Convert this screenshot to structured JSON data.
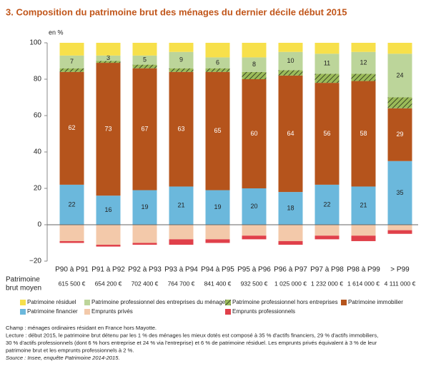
{
  "chart_data": {
    "type": "stacked-bar",
    "title": "3. Composition du patrimoine brut des ménages du dernier décile début 2015",
    "y_label": "en %",
    "categories": [
      "P90 à P91",
      "P91 à P92",
      "P92 à P93",
      "P93 à P94",
      "P94 à P95",
      "P95 à P96",
      "P96 à P97",
      "P97 à P98",
      "P98 à P99",
      "> P99"
    ],
    "series": [
      {
        "name": "Patrimoine financier",
        "color": "#6bb8dc",
        "show_labels": true,
        "values": [
          22,
          16,
          19,
          21,
          19,
          20,
          18,
          22,
          21,
          35
        ]
      },
      {
        "name": "Patrimoine immobilier",
        "color": "#b5541c",
        "show_labels": true,
        "values": [
          62,
          73,
          67,
          63,
          65,
          60,
          64,
          56,
          58,
          29
        ]
      },
      {
        "name": "Patrimoine professionnel hors entreprises",
        "color": "#9bbb59",
        "hatch": true,
        "values": [
          2,
          1,
          2,
          2,
          2,
          4,
          3,
          5,
          4,
          6
        ]
      },
      {
        "name": "Patrimoine professionnel des entreprises du ménage",
        "color": "#bcd59a",
        "show_labels": true,
        "values": [
          7,
          3,
          5,
          9,
          6,
          8,
          10,
          11,
          12,
          24
        ]
      },
      {
        "name": "Patrimoine résiduel",
        "color": "#f7e04b",
        "values": [
          7,
          7,
          7,
          5,
          8,
          8,
          5,
          6,
          5,
          6
        ]
      },
      {
        "name": "Emprunts privés",
        "color": "#f3c9aa",
        "values": [
          -9,
          -11,
          -10,
          -8,
          -8,
          -6,
          -9,
          -6,
          -6,
          -3
        ]
      },
      {
        "name": "Emprunts professionnels",
        "color": "#e0404a",
        "values": [
          -1,
          -1,
          -1,
          -3,
          -2,
          -2,
          -2,
          -2,
          -3,
          -2
        ]
      }
    ],
    "ylim": [
      -20,
      100
    ],
    "yticks": [
      {
        "value": -20,
        "label": "−20"
      },
      0,
      20,
      40,
      60,
      80,
      100
    ],
    "table_row": {
      "label": [
        "Patrimoine",
        "brut moyen"
      ],
      "values": [
        "615 500 €",
        "654 200 €",
        "702 400 €",
        "764 700 €",
        "841 400 €",
        "932 500 €",
        "1 025 000 €",
        "1 232 000 €",
        "1 614 000 €",
        "4 111 000 €"
      ]
    },
    "notes": [
      "Champ : ménages ordinaires résidant en France hors Mayotte.",
      "Lecture : début 2015, le patrimoine brut détenu par les 1 % des ménages les mieux dotés est composé à 35 % d'actifs financiers, 29 % d'actifs immobiliers,",
      "30 % d'actifs professionnels (dont 6 % hors entreprise et 24 % via l'entreprise) et 6 % de patrimoine résiduel. Les emprunts privés équivalent à 3 % de leur",
      "patrimoine brut et les emprunts professionnels à 2 %."
    ],
    "source": "Source : Insee, enquête Patrimoine 2014-2015."
  }
}
